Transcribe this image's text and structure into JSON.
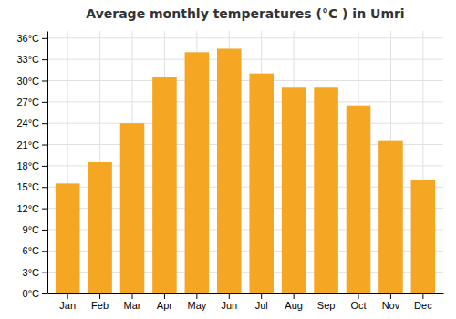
{
  "chart_data": {
    "type": "bar",
    "title": "Average monthly temperatures (°C ) in Umri",
    "categories": [
      "Jan",
      "Feb",
      "Mar",
      "Apr",
      "May",
      "Jun",
      "Jul",
      "Aug",
      "Sep",
      "Oct",
      "Nov",
      "Dec"
    ],
    "values": [
      15.5,
      18.5,
      24.0,
      30.5,
      34.0,
      34.5,
      31.0,
      29.0,
      29.0,
      26.5,
      21.5,
      16.0
    ],
    "color": "#F5A623",
    "ylim": [
      0,
      37
    ],
    "yticks": [
      {
        "value": 0,
        "label": "0°C"
      },
      {
        "value": 3,
        "label": "3°C"
      },
      {
        "value": 6,
        "label": "6°C"
      },
      {
        "value": 9,
        "label": "9°C"
      },
      {
        "value": 12,
        "label": "12°C"
      },
      {
        "value": 15,
        "label": "15°C"
      },
      {
        "value": 18,
        "label": "18°C"
      },
      {
        "value": 21,
        "label": "21°C"
      },
      {
        "value": 24,
        "label": "24°C"
      },
      {
        "value": 27,
        "label": "27°C"
      },
      {
        "value": 30,
        "label": "30°C"
      },
      {
        "value": 33,
        "label": "33°C"
      },
      {
        "value": 36,
        "label": "36°C"
      }
    ],
    "grid": true
  }
}
